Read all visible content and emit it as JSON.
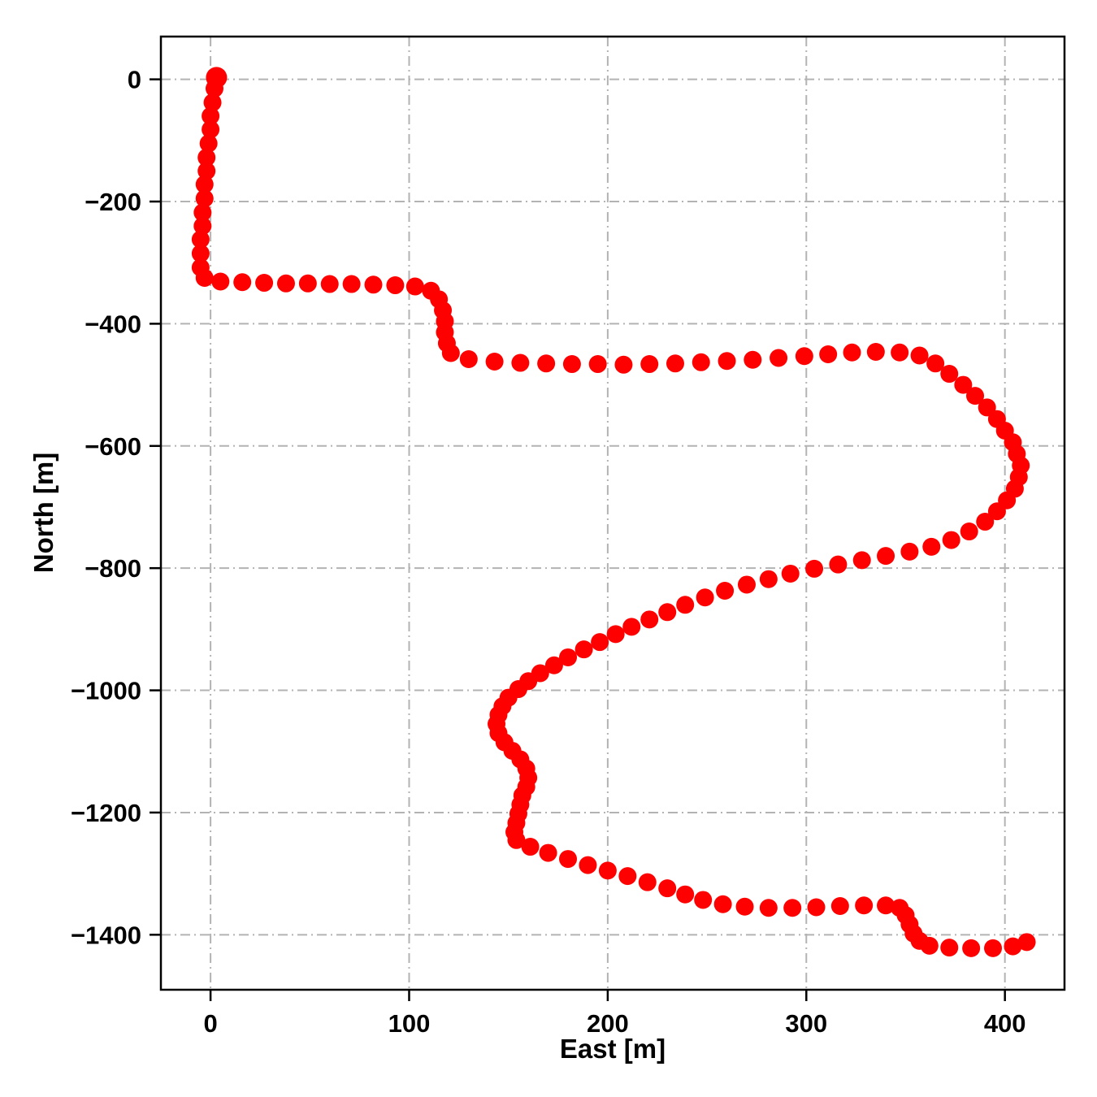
{
  "chart_data": {
    "type": "scatter",
    "title": "",
    "xlabel": "East [m]",
    "ylabel": "North [m]",
    "xlim": [
      -25,
      430
    ],
    "ylim": [
      -1490,
      70
    ],
    "grid": true,
    "grid_style": "dash-dot",
    "grid_color": "#b3b3b3",
    "legend": "none",
    "marker": {
      "color": "#ff0000",
      "radius_px": 11
    },
    "xticks": {
      "values": [
        0,
        100,
        200,
        300,
        400
      ],
      "labels": [
        "0",
        "100",
        "200",
        "300",
        "400"
      ]
    },
    "yticks": {
      "values": [
        0,
        -200,
        -400,
        -600,
        -800,
        -1000,
        -1200,
        -1400
      ],
      "labels": [
        "0",
        "−200",
        "−400",
        "−600",
        "−800",
        "−1000",
        "−1200",
        "−1400"
      ]
    },
    "points": [
      [
        3,
        3
      ],
      [
        2,
        -15
      ],
      [
        1,
        -38
      ],
      [
        0,
        -60
      ],
      [
        0,
        -82
      ],
      [
        -1,
        -105
      ],
      [
        -2,
        -128
      ],
      [
        -2,
        -150
      ],
      [
        -3,
        -172
      ],
      [
        -3,
        -195
      ],
      [
        -4,
        -218
      ],
      [
        -4,
        -240
      ],
      [
        -5,
        -262
      ],
      [
        -5,
        -285
      ],
      [
        -5,
        -308
      ],
      [
        -3,
        -325
      ],
      [
        5,
        -331
      ],
      [
        16,
        -332
      ],
      [
        27,
        -333
      ],
      [
        38,
        -334
      ],
      [
        49,
        -334
      ],
      [
        60,
        -335
      ],
      [
        71,
        -335
      ],
      [
        82,
        -336
      ],
      [
        93,
        -337
      ],
      [
        103,
        -339
      ],
      [
        111,
        -346
      ],
      [
        115,
        -360
      ],
      [
        117,
        -378
      ],
      [
        118,
        -396
      ],
      [
        118,
        -414
      ],
      [
        119,
        -432
      ],
      [
        121,
        -448
      ],
      [
        130,
        -458
      ],
      [
        143,
        -462
      ],
      [
        156,
        -464
      ],
      [
        169,
        -465
      ],
      [
        182,
        -466
      ],
      [
        195,
        -466
      ],
      [
        208,
        -467
      ],
      [
        221,
        -466
      ],
      [
        234,
        -465
      ],
      [
        247,
        -463
      ],
      [
        260,
        -461
      ],
      [
        273,
        -459
      ],
      [
        286,
        -456
      ],
      [
        299,
        -453
      ],
      [
        311,
        -450
      ],
      [
        323,
        -447
      ],
      [
        335,
        -446
      ],
      [
        347,
        -447
      ],
      [
        357,
        -452
      ],
      [
        365,
        -465
      ],
      [
        372,
        -482
      ],
      [
        379,
        -500
      ],
      [
        385,
        -518
      ],
      [
        391,
        -537
      ],
      [
        396,
        -556
      ],
      [
        400,
        -575
      ],
      [
        404,
        -594
      ],
      [
        406,
        -613
      ],
      [
        408,
        -632
      ],
      [
        407,
        -651
      ],
      [
        405,
        -670
      ],
      [
        401,
        -689
      ],
      [
        396,
        -707
      ],
      [
        390,
        -724
      ],
      [
        382,
        -740
      ],
      [
        373,
        -754
      ],
      [
        363,
        -765
      ],
      [
        352,
        -773
      ],
      [
        340,
        -780
      ],
      [
        328,
        -787
      ],
      [
        316,
        -794
      ],
      [
        304,
        -801
      ],
      [
        292,
        -809
      ],
      [
        281,
        -818
      ],
      [
        270,
        -827
      ],
      [
        259,
        -837
      ],
      [
        249,
        -848
      ],
      [
        239,
        -860
      ],
      [
        230,
        -872
      ],
      [
        221,
        -884
      ],
      [
        212,
        -896
      ],
      [
        204,
        -908
      ],
      [
        196,
        -921
      ],
      [
        188,
        -933
      ],
      [
        180,
        -946
      ],
      [
        173,
        -959
      ],
      [
        166,
        -972
      ],
      [
        160,
        -985
      ],
      [
        155,
        -998
      ],
      [
        150,
        -1012
      ],
      [
        147,
        -1026
      ],
      [
        145,
        -1040
      ],
      [
        144,
        -1055
      ],
      [
        145,
        -1070
      ],
      [
        148,
        -1085
      ],
      [
        152,
        -1099
      ],
      [
        156,
        -1113
      ],
      [
        159,
        -1128
      ],
      [
        160,
        -1143
      ],
      [
        159,
        -1158
      ],
      [
        157,
        -1172
      ],
      [
        156,
        -1187
      ],
      [
        155,
        -1202
      ],
      [
        154,
        -1217
      ],
      [
        153,
        -1232
      ],
      [
        154,
        -1245
      ],
      [
        161,
        -1256
      ],
      [
        170,
        -1266
      ],
      [
        180,
        -1276
      ],
      [
        190,
        -1286
      ],
      [
        200,
        -1295
      ],
      [
        210,
        -1304
      ],
      [
        220,
        -1314
      ],
      [
        230,
        -1324
      ],
      [
        239,
        -1334
      ],
      [
        248,
        -1343
      ],
      [
        258,
        -1350
      ],
      [
        269,
        -1354
      ],
      [
        281,
        -1356
      ],
      [
        293,
        -1356
      ],
      [
        305,
        -1355
      ],
      [
        317,
        -1353
      ],
      [
        329,
        -1352
      ],
      [
        340,
        -1352
      ],
      [
        347,
        -1356
      ],
      [
        350,
        -1368
      ],
      [
        352,
        -1383
      ],
      [
        354,
        -1398
      ],
      [
        357,
        -1410
      ],
      [
        362,
        -1418
      ],
      [
        372,
        -1421
      ],
      [
        383,
        -1422
      ],
      [
        394,
        -1422
      ],
      [
        404,
        -1419
      ],
      [
        411,
        -1412
      ]
    ]
  }
}
